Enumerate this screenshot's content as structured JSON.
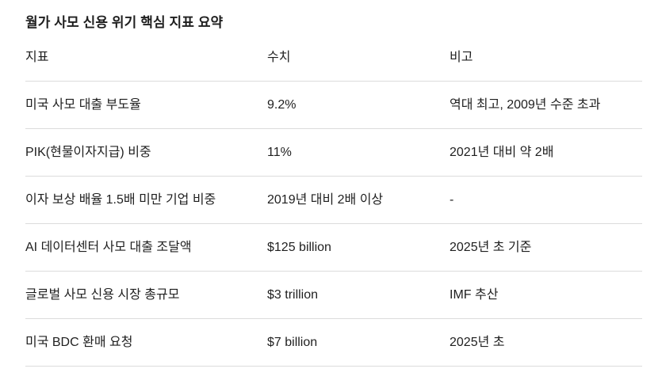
{
  "title": "월가 사모 신용 위기 핵심 지표 요약",
  "table": {
    "columns": {
      "indicator": "지표",
      "value": "수치",
      "note": "비고"
    },
    "rows": [
      {
        "indicator": "미국 사모 대출 부도율",
        "value": "9.2%",
        "note": "역대 최고, 2009년 수준 초과"
      },
      {
        "indicator": "PIK(현물이자지급) 비중",
        "value": "11%",
        "note": "2021년 대비 약 2배"
      },
      {
        "indicator": "이자 보상 배율 1.5배 미만 기업 비중",
        "value": "2019년 대비 2배 이상",
        "note": "-"
      },
      {
        "indicator": "AI 데이터센터 사모 대출 조달액",
        "value": "$125 billion",
        "note": "2025년 초 기준"
      },
      {
        "indicator": "글로벌 사모 신용 시장 총규모",
        "value": "$3 trillion",
        "note": "IMF 추산"
      },
      {
        "indicator": "미국 BDC 환매 요청",
        "value": "$7 billion",
        "note": "2025년 초"
      }
    ]
  },
  "colors": {
    "text": "#1f1f1f",
    "divider": "#dcdcdc",
    "background": "#ffffff"
  }
}
